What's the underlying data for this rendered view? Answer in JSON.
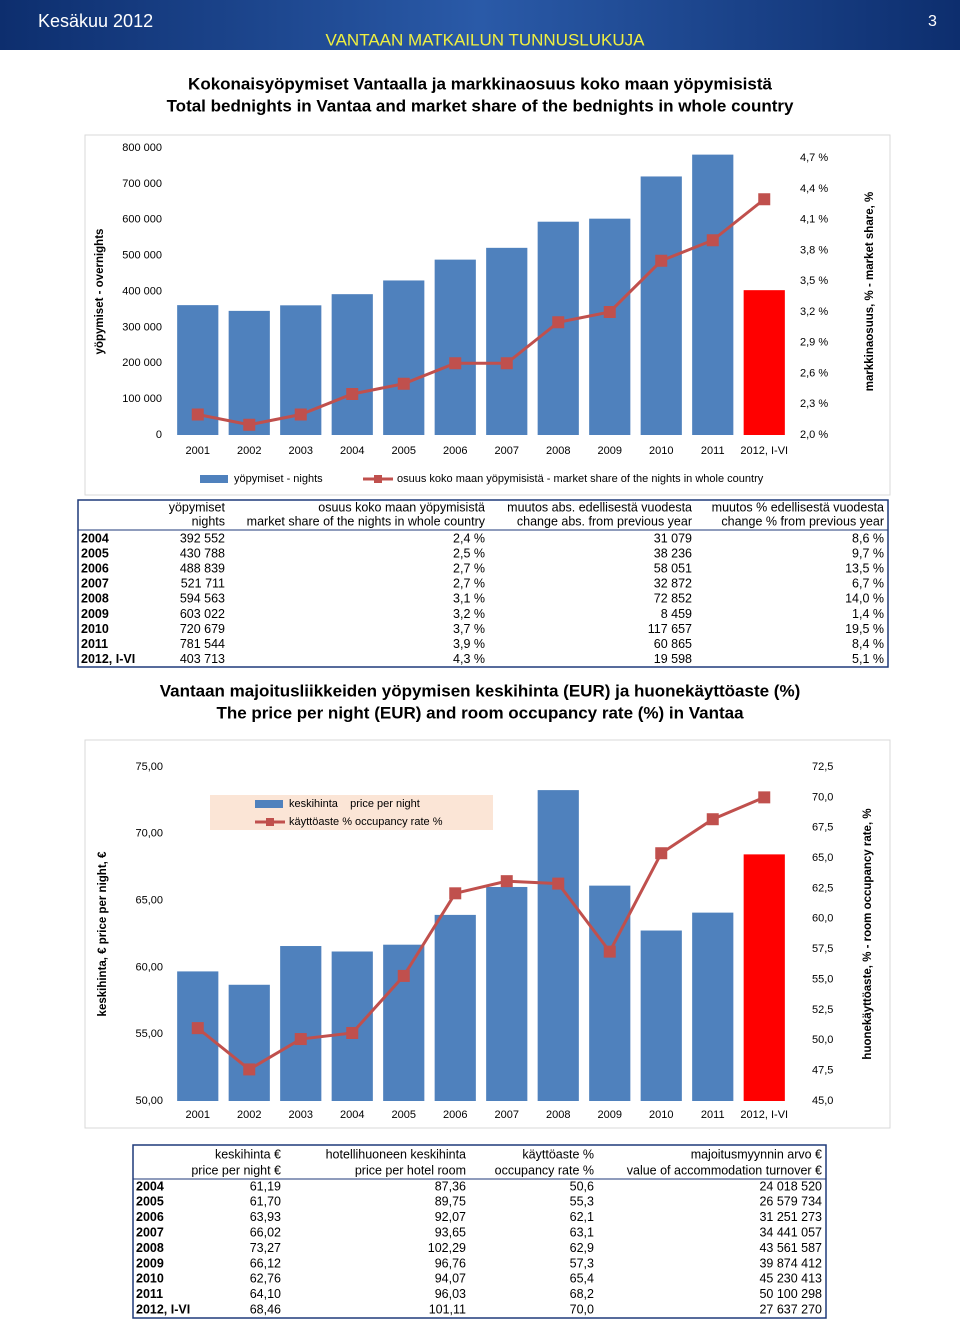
{
  "header": {
    "date": "Kesäkuu 2012",
    "title": "VANTAAN MATKAILUN TUNNUSLUKUJA",
    "page": "3"
  },
  "chart_data": [
    {
      "type": "combo",
      "title": "Kokonaisyöpymiset Vantaalla ja markkinaosuus koko maan yöpymisistä",
      "subtitle": "Total bednights in Vantaa and market share of the bednights in whole country",
      "y_label": "yöpymiset - overnights",
      "y2_label": "markkinaosuus, % - market share, %",
      "categories": [
        "2001",
        "2002",
        "2003",
        "2004",
        "2005",
        "2006",
        "2007",
        "2008",
        "2009",
        "2010",
        "2011",
        "2012, I-VI"
      ],
      "series": [
        {
          "name": "yöpymiset - nights",
          "type": "bar",
          "color": "#4f81bd",
          "colors": [
            "#4f81bd",
            "#4f81bd",
            "#4f81bd",
            "#4f81bd",
            "#4f81bd",
            "#4f81bd",
            "#4f81bd",
            "#4f81bd",
            "#4f81bd",
            "#4f81bd",
            "#4f81bd",
            "#ff0000"
          ],
          "values": [
            362000,
            346000,
            361473,
            392552,
            430788,
            488839,
            521711,
            594563,
            603022,
            720679,
            781544,
            403713
          ]
        },
        {
          "name": "osuus koko maan yöpymisistä - market share of the nights in whole country",
          "type": "line",
          "axis": "y2",
          "color": "#c0504d",
          "values": [
            2.2,
            2.1,
            2.2,
            2.4,
            2.5,
            2.7,
            2.7,
            3.1,
            3.2,
            3.7,
            3.9,
            4.3
          ]
        }
      ],
      "ylim": [
        0,
        800000
      ],
      "yticks": [
        0,
        {
          "value": 100000,
          "label": "100 000"
        },
        {
          "value": 200000,
          "label": "200 000"
        },
        {
          "value": 300000,
          "label": "300 000"
        },
        {
          "value": 400000,
          "label": "400 000"
        },
        {
          "value": 500000,
          "label": "500 000"
        },
        {
          "value": 600000,
          "label": "600 000"
        },
        {
          "value": 700000,
          "label": "700 000"
        },
        {
          "value": 800000,
          "label": "800 000"
        }
      ],
      "y2lim": [
        2.0,
        4.8
      ],
      "y2ticks": [
        {
          "value": 2.0,
          "label": "2,0 %"
        },
        {
          "value": 2.3,
          "label": "2,3 %"
        },
        {
          "value": 2.6,
          "label": "2,6 %"
        },
        {
          "value": 2.9,
          "label": "2,9 %"
        },
        {
          "value": 3.2,
          "label": "3,2 %"
        },
        {
          "value": 3.5,
          "label": "3,5 %"
        },
        {
          "value": 3.8,
          "label": "3,8 %"
        },
        {
          "value": 4.1,
          "label": "4,1 %"
        },
        {
          "value": 4.4,
          "label": "4,4 %"
        },
        {
          "value": 4.7,
          "label": "4,7 %"
        }
      ],
      "grid": false,
      "legend": "bottom"
    },
    {
      "type": "combo",
      "title": "Vantaan majoitusliikkeiden yöpymisen keskihinta (EUR) ja huonekäyttöaste (%)",
      "subtitle": "The price per night (EUR) and room occupancy rate (%) in Vantaa",
      "y_label": "keskihinta, € price per night, €",
      "y2_label": "huonekäyttöaste, % - room occupancy rate, %",
      "categories": [
        "2001",
        "2002",
        "2003",
        "2004",
        "2005",
        "2006",
        "2007",
        "2008",
        "2009",
        "2010",
        "2011",
        "2012, I-VI"
      ],
      "series": [
        {
          "name": "keskihinta    price per night",
          "type": "bar",
          "color": "#4f81bd",
          "colors": [
            "#4f81bd",
            "#4f81bd",
            "#4f81bd",
            "#4f81bd",
            "#4f81bd",
            "#4f81bd",
            "#4f81bd",
            "#4f81bd",
            "#4f81bd",
            "#4f81bd",
            "#4f81bd",
            "#ff0000"
          ],
          "values": [
            59.7,
            58.7,
            61.6,
            61.19,
            61.7,
            63.93,
            66.02,
            73.27,
            66.12,
            62.76,
            64.1,
            68.46
          ]
        },
        {
          "name": "käyttöaste % occupancy rate %",
          "type": "line",
          "axis": "y2",
          "color": "#c0504d",
          "values": [
            51.0,
            47.6,
            50.1,
            50.6,
            55.3,
            62.1,
            63.1,
            62.9,
            57.3,
            65.4,
            68.2,
            70.0
          ]
        }
      ],
      "ylim": [
        50,
        75
      ],
      "yticks": [
        {
          "value": 50,
          "label": "50,00"
        },
        {
          "value": 55,
          "label": "55,00"
        },
        {
          "value": 60,
          "label": "60,00"
        },
        {
          "value": 65,
          "label": "65,00"
        },
        {
          "value": 70,
          "label": "70,00"
        },
        {
          "value": 75,
          "label": "75,00"
        }
      ],
      "y2lim": [
        45,
        72.5
      ],
      "y2ticks": [
        {
          "value": 45,
          "label": "45,0"
        },
        {
          "value": 47.5,
          "label": "47,5"
        },
        {
          "value": 50,
          "label": "50,0"
        },
        {
          "value": 52.5,
          "label": "52,5"
        },
        {
          "value": 55,
          "label": "55,0"
        },
        {
          "value": 57.5,
          "label": "57,5"
        },
        {
          "value": 60,
          "label": "60,0"
        },
        {
          "value": 62.5,
          "label": "62,5"
        },
        {
          "value": 65,
          "label": "65,0"
        },
        {
          "value": 67.5,
          "label": "67,5"
        },
        {
          "value": 70,
          "label": "70,0"
        },
        {
          "value": 72.5,
          "label": "72,5"
        }
      ],
      "grid": false,
      "legend": "top-left"
    }
  ],
  "tables": [
    {
      "header": [
        [
          "yöpymiset",
          "nights"
        ],
        [
          "osuus koko maan yöpymisistä",
          "market share of the nights in whole country"
        ],
        [
          "muutos abs. edellisestä vuodesta",
          "change abs. from previous year"
        ],
        [
          "muutos % edellisestä vuodesta",
          "change % from previous year"
        ]
      ],
      "rows": [
        [
          "2004",
          "392 552",
          "2,4 %",
          "31 079",
          "8,6 %"
        ],
        [
          "2005",
          "430 788",
          "2,5 %",
          "38 236",
          "9,7 %"
        ],
        [
          "2006",
          "488 839",
          "2,7 %",
          "58 051",
          "13,5 %"
        ],
        [
          "2007",
          "521 711",
          "2,7 %",
          "32 872",
          "6,7 %"
        ],
        [
          "2008",
          "594 563",
          "3,1 %",
          "72 852",
          "14,0 %"
        ],
        [
          "2009",
          "603 022",
          "3,2 %",
          "8 459",
          "1,4 %"
        ],
        [
          "2010",
          "720 679",
          "3,7 %",
          "117 657",
          "19,5 %"
        ],
        [
          "2011",
          "781 544",
          "3,9 %",
          "60 865",
          "8,4 %"
        ],
        [
          "2012, I-VI",
          "403 713",
          "4,3 %",
          "19 598",
          "5,1 %"
        ]
      ]
    },
    {
      "header": [
        [
          "keskihinta €",
          "price per night €"
        ],
        [
          "hotellihuoneen keskihinta",
          "price per hotel room"
        ],
        [
          "käyttöaste %",
          "occupancy rate %"
        ],
        [
          "majoitusmyynnin arvo €",
          "value of accommodation turnover €"
        ]
      ],
      "rows": [
        [
          "2004",
          "61,19",
          "87,36",
          "50,6",
          "24 018 520"
        ],
        [
          "2005",
          "61,70",
          "89,75",
          "55,3",
          "26 579 734"
        ],
        [
          "2006",
          "63,93",
          "92,07",
          "62,1",
          "31 251 273"
        ],
        [
          "2007",
          "66,02",
          "93,65",
          "63,1",
          "34 441 057"
        ],
        [
          "2008",
          "73,27",
          "102,29",
          "62,9",
          "43 561 587"
        ],
        [
          "2009",
          "66,12",
          "96,76",
          "57,3",
          "39 874 412"
        ],
        [
          "2010",
          "62,76",
          "94,07",
          "65,4",
          "45 230 413"
        ],
        [
          "2011",
          "64,10",
          "96,03",
          "68,2",
          "50 100 298"
        ],
        [
          "2012, I-VI",
          "68,46",
          "101,11",
          "70,0",
          "27 637 270"
        ]
      ]
    }
  ]
}
